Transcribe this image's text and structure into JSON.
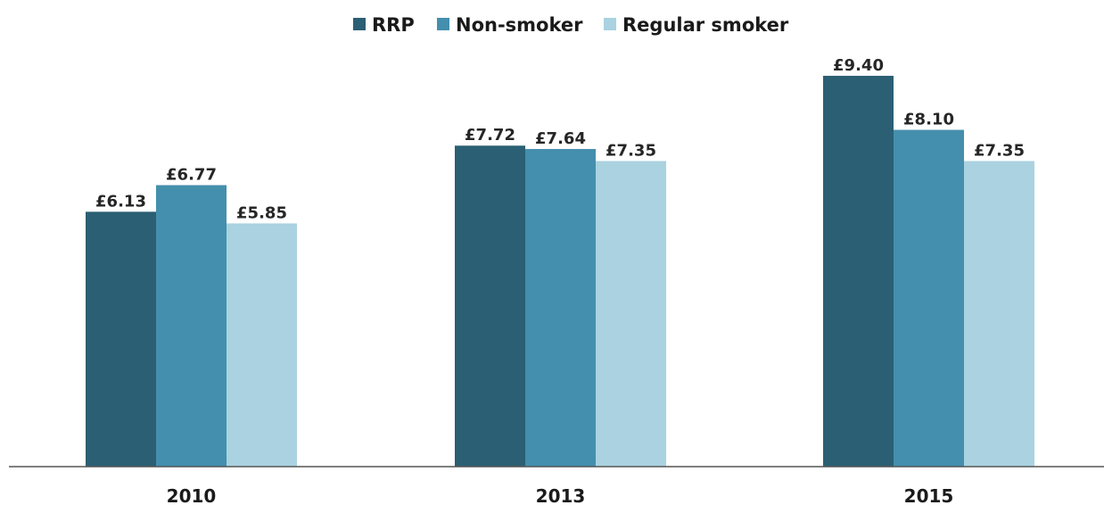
{
  "chart_data": {
    "type": "bar",
    "title": "",
    "xlabel": "",
    "ylabel": "",
    "categories": [
      "2010",
      "2013",
      "2015"
    ],
    "series": [
      {
        "name": "RRP",
        "color": "#2b5f73",
        "values": [
          6.13,
          7.72,
          9.4
        ],
        "labels": [
          "£6.13",
          "£7.72",
          "£9.40"
        ]
      },
      {
        "name": "Non-smoker",
        "color": "#448fad",
        "values": [
          6.77,
          7.64,
          8.1
        ],
        "labels": [
          "£6.77",
          "£7.64",
          "£8.10"
        ]
      },
      {
        "name": "Regular smoker",
        "color": "#aad2e0",
        "values": [
          5.85,
          7.35,
          7.35
        ],
        "labels": [
          "£5.85",
          "£7.35",
          "£7.35"
        ]
      }
    ],
    "ylim": [
      0,
      10
    ],
    "grid": false,
    "legend_position": "top-center"
  }
}
